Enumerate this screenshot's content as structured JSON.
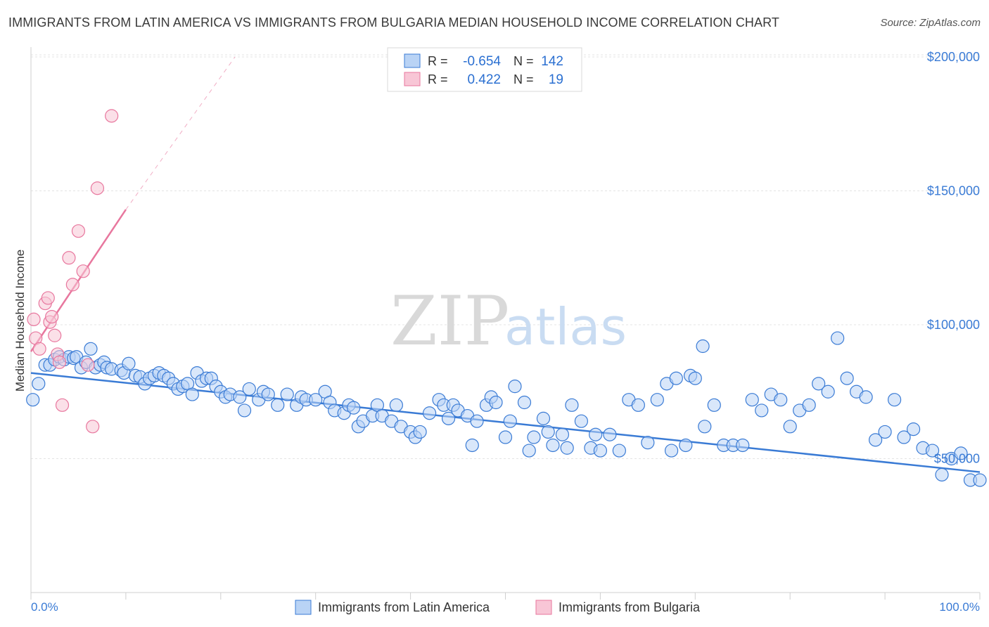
{
  "title": "IMMIGRANTS FROM LATIN AMERICA VS IMMIGRANTS FROM BULGARIA MEDIAN HOUSEHOLD INCOME CORRELATION CHART",
  "source": "Source: ZipAtlas.com",
  "watermark": {
    "zip": "ZIP",
    "atlas": "atlas"
  },
  "colors": {
    "blue": "#3a7bd5",
    "blue_fill": "#b9d3f5",
    "pink": "#e8779e",
    "pink_fill": "#f8c6d6"
  },
  "legend": {
    "r_label": "R =",
    "n_label": "N =",
    "rows": [
      {
        "series": "blue",
        "r": "-0.654",
        "n": "142"
      },
      {
        "series": "pink",
        "r": "0.422",
        "n": "19"
      }
    ]
  },
  "bottom_legend": [
    "Immigrants from Latin America",
    "Immigrants from Bulgaria"
  ],
  "chart_data": {
    "type": "scatter",
    "ylabel": "Median Household Income",
    "xlim": [
      0,
      100
    ],
    "ylim": [
      0,
      205000
    ],
    "x_tick_labels": [
      "0.0%",
      "100.0%"
    ],
    "y_ticks": [
      {
        "value": 50000,
        "label": "$50,000"
      },
      {
        "value": 100000,
        "label": "$100,000"
      },
      {
        "value": 150000,
        "label": "$150,000"
      },
      {
        "value": 200000,
        "label": "$200,000"
      }
    ],
    "grid": true,
    "series": [
      {
        "name": "Immigrants from Latin America",
        "color": "#3a7bd5",
        "trend": {
          "x0": 0,
          "y0": 82000,
          "x1": 100,
          "y1": 45000
        },
        "points": [
          [
            0.2,
            72000
          ],
          [
            0.8,
            78000
          ],
          [
            1.5,
            85000
          ],
          [
            2,
            85000
          ],
          [
            2.5,
            87000
          ],
          [
            3,
            88000
          ],
          [
            3.5,
            87000
          ],
          [
            4,
            88000
          ],
          [
            4.5,
            87500
          ],
          [
            4.8,
            88000
          ],
          [
            5.3,
            84000
          ],
          [
            5.8,
            86000
          ],
          [
            6.3,
            91000
          ],
          [
            6.8,
            84000
          ],
          [
            7.3,
            85000
          ],
          [
            7.7,
            86000
          ],
          [
            8,
            84000
          ],
          [
            8.5,
            83500
          ],
          [
            9.5,
            83000
          ],
          [
            9.8,
            82000
          ],
          [
            10.3,
            85500
          ],
          [
            11,
            81000
          ],
          [
            11.5,
            80500
          ],
          [
            12,
            78000
          ],
          [
            12.5,
            80000
          ],
          [
            13,
            81000
          ],
          [
            13.5,
            82000
          ],
          [
            14,
            81000
          ],
          [
            14.5,
            80000
          ],
          [
            15,
            78000
          ],
          [
            15.5,
            76000
          ],
          [
            16,
            77000
          ],
          [
            16.5,
            78000
          ],
          [
            17,
            74000
          ],
          [
            17.5,
            82000
          ],
          [
            18,
            79000
          ],
          [
            18.5,
            80000
          ],
          [
            19,
            80000
          ],
          [
            19.5,
            77000
          ],
          [
            20,
            75000
          ],
          [
            20.5,
            73000
          ],
          [
            21,
            74000
          ],
          [
            22,
            73000
          ],
          [
            22.5,
            68000
          ],
          [
            23,
            76000
          ],
          [
            24,
            72000
          ],
          [
            24.5,
            75000
          ],
          [
            25,
            74000
          ],
          [
            26,
            70000
          ],
          [
            27,
            74000
          ],
          [
            28,
            70000
          ],
          [
            28.5,
            73000
          ],
          [
            29,
            72000
          ],
          [
            30,
            72000
          ],
          [
            31,
            75000
          ],
          [
            31.5,
            71000
          ],
          [
            32,
            68000
          ],
          [
            33,
            67000
          ],
          [
            33.5,
            70000
          ],
          [
            34,
            69000
          ],
          [
            34.5,
            62000
          ],
          [
            35,
            64000
          ],
          [
            36,
            66000
          ],
          [
            36.5,
            70000
          ],
          [
            37,
            66000
          ],
          [
            38,
            64000
          ],
          [
            38.5,
            70000
          ],
          [
            39,
            62000
          ],
          [
            40,
            60000
          ],
          [
            40.5,
            58000
          ],
          [
            41,
            60000
          ],
          [
            42,
            67000
          ],
          [
            43,
            72000
          ],
          [
            43.5,
            70000
          ],
          [
            44,
            65000
          ],
          [
            44.5,
            70000
          ],
          [
            45,
            68000
          ],
          [
            46,
            66000
          ],
          [
            46.5,
            55000
          ],
          [
            47,
            64000
          ],
          [
            48,
            70000
          ],
          [
            48.5,
            73000
          ],
          [
            49,
            71000
          ],
          [
            50,
            58000
          ],
          [
            50.5,
            64000
          ],
          [
            51,
            77000
          ],
          [
            52,
            71000
          ],
          [
            52.5,
            53000
          ],
          [
            53,
            58000
          ],
          [
            54,
            65000
          ],
          [
            54.5,
            60000
          ],
          [
            55,
            55000
          ],
          [
            56,
            59000
          ],
          [
            57,
            70000
          ],
          [
            58,
            64000
          ],
          [
            59,
            54000
          ],
          [
            59.5,
            59000
          ],
          [
            60,
            53000
          ],
          [
            61,
            59000
          ],
          [
            62,
            53000
          ],
          [
            63,
            72000
          ],
          [
            64,
            70000
          ],
          [
            65,
            56000
          ],
          [
            66,
            72000
          ],
          [
            67,
            78000
          ],
          [
            67.5,
            53000
          ],
          [
            68,
            80000
          ],
          [
            69,
            55000
          ],
          [
            69.5,
            81000
          ],
          [
            70,
            80000
          ],
          [
            71,
            62000
          ],
          [
            72,
            70000
          ],
          [
            73,
            55000
          ],
          [
            74,
            55000
          ],
          [
            75,
            55000
          ],
          [
            76,
            72000
          ],
          [
            77,
            68000
          ],
          [
            78,
            74000
          ],
          [
            79,
            72000
          ],
          [
            80,
            62000
          ],
          [
            81,
            68000
          ],
          [
            82,
            70000
          ],
          [
            83,
            78000
          ],
          [
            84,
            75000
          ],
          [
            85,
            95000
          ],
          [
            86,
            80000
          ],
          [
            87,
            75000
          ],
          [
            88,
            73000
          ],
          [
            89,
            57000
          ],
          [
            90,
            60000
          ],
          [
            91,
            72000
          ],
          [
            92,
            58000
          ],
          [
            93,
            61000
          ],
          [
            94,
            54000
          ],
          [
            95,
            53000
          ],
          [
            96,
            44000
          ],
          [
            97,
            50000
          ],
          [
            98,
            52000
          ],
          [
            99,
            42000
          ],
          [
            100,
            42000
          ],
          [
            70.8,
            92000
          ],
          [
            56.5,
            54000
          ]
        ]
      },
      {
        "name": "Immigrants from Bulgaria",
        "color": "#e8779e",
        "trend": {
          "x0": 0,
          "y0": 90000,
          "x1": 10,
          "y1": 143000,
          "dash_x1": 21.5,
          "dash_y1": 200000
        },
        "points": [
          [
            0.3,
            102000
          ],
          [
            0.5,
            95000
          ],
          [
            0.9,
            91000
          ],
          [
            1.5,
            108000
          ],
          [
            1.8,
            110000
          ],
          [
            2,
            101000
          ],
          [
            2.2,
            103000
          ],
          [
            2.5,
            96000
          ],
          [
            2.8,
            89000
          ],
          [
            3,
            86000
          ],
          [
            3.3,
            70000
          ],
          [
            4,
            125000
          ],
          [
            4.4,
            115000
          ],
          [
            5,
            135000
          ],
          [
            5.5,
            120000
          ],
          [
            6,
            85000
          ],
          [
            6.5,
            62000
          ],
          [
            7,
            151000
          ],
          [
            8.5,
            178000
          ]
        ]
      }
    ]
  }
}
